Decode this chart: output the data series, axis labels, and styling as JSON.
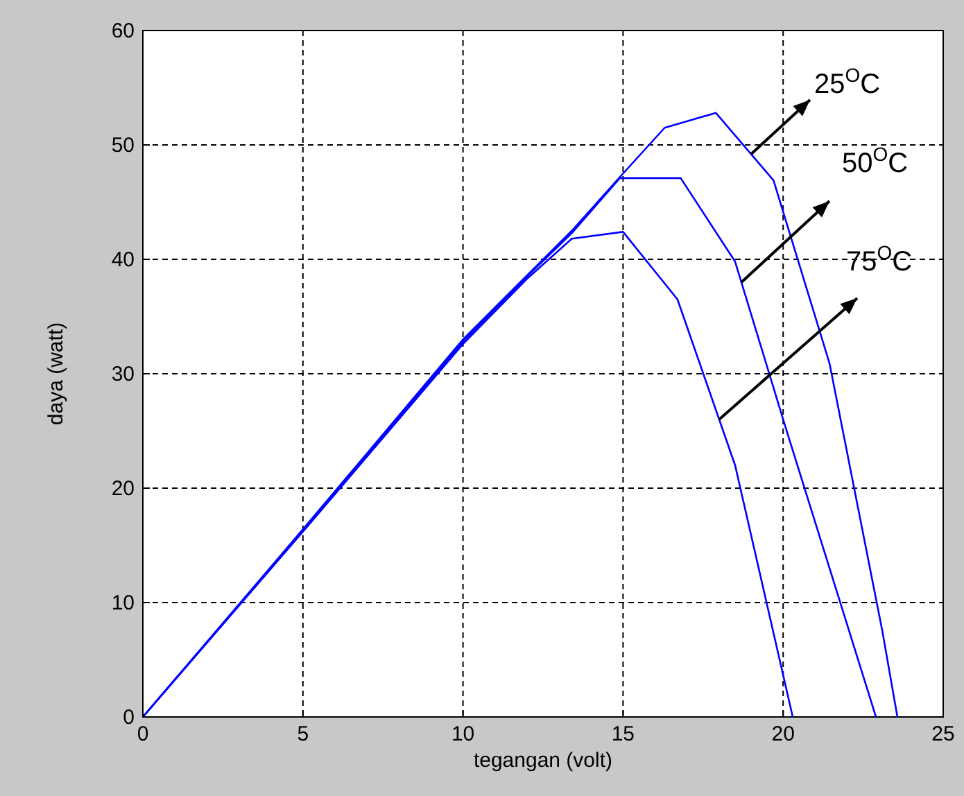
{
  "chart_data": {
    "type": "line",
    "xlabel": "tegangan (volt)",
    "ylabel": "daya (watt)",
    "xlim": [
      0,
      25
    ],
    "ylim": [
      0,
      60
    ],
    "xticks": [
      0,
      5,
      10,
      15,
      20,
      25
    ],
    "yticks": [
      0,
      10,
      20,
      30,
      40,
      50,
      60
    ],
    "grid": true,
    "series": [
      {
        "color": "#0000ff",
        "x": [
          0,
          5,
          10,
          12,
          13.4,
          15,
          16.3,
          17.9,
          19.7,
          21.45,
          23.1,
          23.57
        ],
        "values": [
          0,
          16.4,
          33,
          38.6,
          42.5,
          47.5,
          51.5,
          52.8,
          46.9,
          30.9,
          7.5,
          0
        ]
      },
      {
        "color": "#0000ff",
        "x": [
          0,
          5,
          10,
          12,
          13.4,
          14.9,
          16.8,
          18.5,
          20.1,
          22.9
        ],
        "values": [
          0,
          16.3,
          32.8,
          38.5,
          42.3,
          47.1,
          47.1,
          39.8,
          25.1,
          0
        ]
      },
      {
        "color": "#0000ff",
        "x": [
          0,
          5,
          10,
          12,
          13.4,
          15,
          16.7,
          18.5,
          20.3
        ],
        "values": [
          0,
          16.2,
          32.6,
          38.3,
          41.8,
          42.4,
          36.5,
          22,
          0
        ]
      }
    ],
    "annotations": [
      {
        "text": "25$^{O}$C",
        "x": 19,
        "y": 49.2
      },
      {
        "text": "50$^{O}$C",
        "x": 18.7,
        "y": 38
      },
      {
        "text": "75$^{O}$C",
        "x": 18,
        "y": 26
      }
    ]
  }
}
